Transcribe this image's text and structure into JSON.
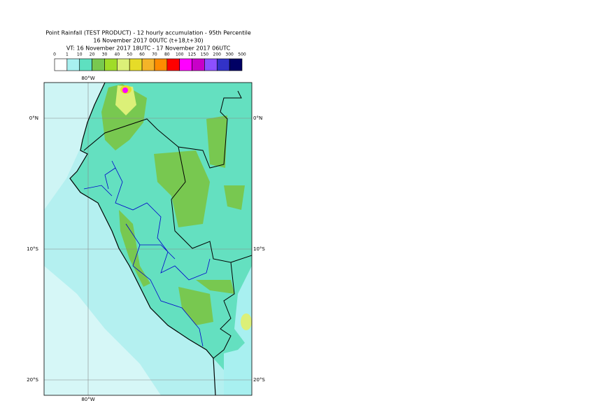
{
  "title_lines": [
    "Point Rainfall (TEST PRODUCT) - 12 hourly accumulation - 95th Percentile",
    "16 November 2017 00UTC (t+18,t+30)",
    "VT: 16 November 2017 18UTC - 17 November 2017 06UTC"
  ],
  "colorbar": {
    "levels": [
      0,
      1,
      10,
      20,
      30,
      40,
      50,
      60,
      70,
      80,
      100,
      125,
      150,
      200,
      300,
      500
    ],
    "colors": [
      "#ffffff",
      "#a8f0f0",
      "#5ee0c0",
      "#78c850",
      "#a0dc28",
      "#dcf078",
      "#e6dc28",
      "#f5b428",
      "#ff8c00",
      "#ff0000",
      "#ff00ff",
      "#c800c8",
      "#8c50ff",
      "#3232c8",
      "#000064"
    ]
  },
  "map": {
    "lon_labels": [
      "80°W"
    ],
    "lat_labels": [
      "0°N",
      "10°S",
      "20°S"
    ]
  }
}
